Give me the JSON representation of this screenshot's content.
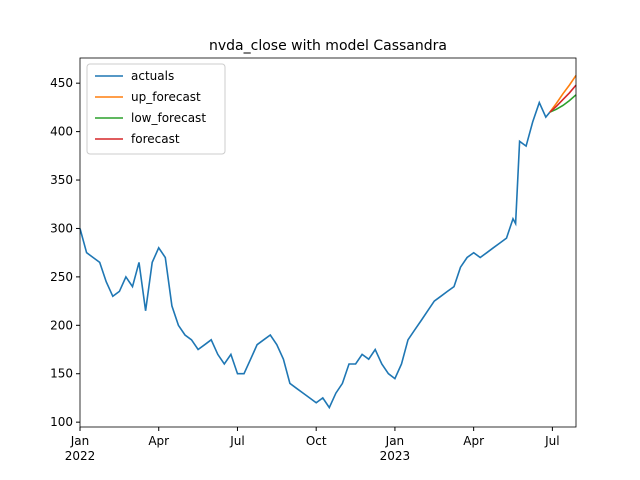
{
  "chart_data": {
    "type": "line",
    "title": "nvda_close with model Cassandra",
    "xlim": [
      0,
      18.9
    ],
    "ylim": [
      95,
      476
    ],
    "xticks": [
      {
        "value": 0,
        "label": "Jan\n2022"
      },
      {
        "value": 3,
        "label": "Apr"
      },
      {
        "value": 6,
        "label": "Jul"
      },
      {
        "value": 9,
        "label": "Oct"
      },
      {
        "value": 12,
        "label": "Jan\n2023"
      },
      {
        "value": 15,
        "label": "Apr"
      },
      {
        "value": 18,
        "label": "Jul"
      }
    ],
    "yticks": [
      100,
      150,
      200,
      250,
      300,
      350,
      400,
      450
    ],
    "legend": "upper left",
    "series": [
      {
        "name": "actuals",
        "color": "#1f77b4",
        "x": [
          0,
          0.25,
          0.5,
          0.75,
          1,
          1.25,
          1.5,
          1.75,
          2,
          2.25,
          2.5,
          2.75,
          3,
          3.25,
          3.5,
          3.75,
          4,
          4.25,
          4.5,
          4.75,
          5,
          5.25,
          5.5,
          5.75,
          6,
          6.25,
          6.5,
          6.75,
          7,
          7.25,
          7.5,
          7.75,
          8,
          8.25,
          8.5,
          8.75,
          9,
          9.25,
          9.5,
          9.75,
          10,
          10.25,
          10.5,
          10.75,
          11,
          11.25,
          11.5,
          11.75,
          12,
          12.25,
          12.5,
          12.75,
          13,
          13.25,
          13.5,
          13.75,
          14,
          14.25,
          14.5,
          14.75,
          15,
          15.25,
          15.5,
          15.75,
          16,
          16.25,
          16.5,
          16.6,
          16.75,
          17,
          17.25,
          17.5,
          17.75,
          17.9
        ],
        "values": [
          300,
          275,
          270,
          265,
          245,
          230,
          235,
          250,
          240,
          265,
          215,
          265,
          280,
          270,
          220,
          200,
          190,
          185,
          175,
          180,
          185,
          170,
          160,
          170,
          150,
          150,
          165,
          180,
          185,
          190,
          180,
          165,
          140,
          135,
          130,
          125,
          120,
          125,
          115,
          130,
          140,
          160,
          160,
          170,
          165,
          175,
          160,
          150,
          145,
          160,
          185,
          195,
          205,
          215,
          225,
          230,
          235,
          240,
          260,
          270,
          275,
          270,
          275,
          280,
          285,
          290,
          310,
          305,
          390,
          385,
          410,
          430,
          415,
          420
        ]
      },
      {
        "name": "up_forecast",
        "color": "#ff7f0e",
        "x": [
          17.9,
          18.15,
          18.4,
          18.65,
          18.9
        ],
        "values": [
          420,
          429,
          439,
          448,
          458
        ]
      },
      {
        "name": "low_forecast",
        "color": "#2ca02c",
        "x": [
          17.9,
          18.15,
          18.4,
          18.65,
          18.9
        ],
        "values": [
          420,
          423,
          427,
          432,
          438
        ]
      },
      {
        "name": "forecast",
        "color": "#d62728",
        "x": [
          17.9,
          18.15,
          18.4,
          18.65,
          18.9
        ],
        "values": [
          420,
          426,
          433,
          440,
          448
        ]
      }
    ]
  }
}
